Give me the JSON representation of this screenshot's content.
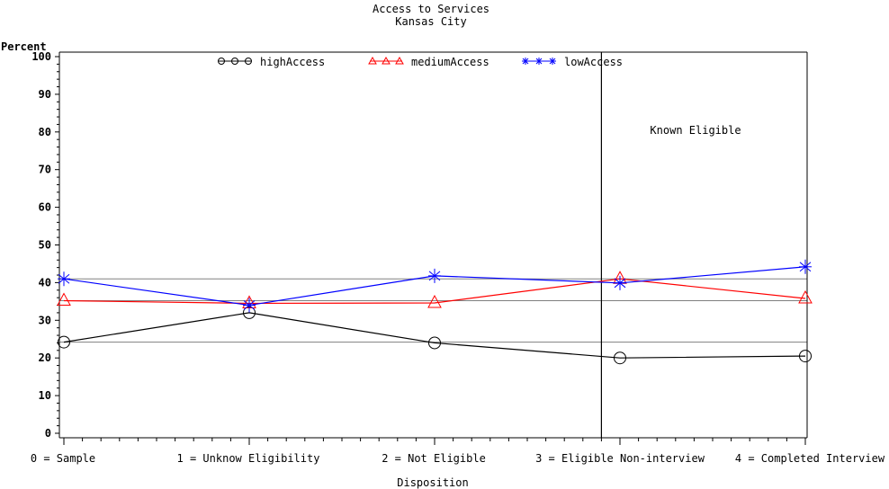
{
  "chart_data": {
    "type": "line",
    "title": "Access to Services",
    "subtitle": "Kansas City",
    "xlabel": "Disposition",
    "ylabel": "Percent",
    "x": [
      0,
      1,
      2,
      3,
      4
    ],
    "xlim": [
      0,
      4
    ],
    "ylim": [
      0,
      100
    ],
    "y_ticks": [
      0,
      10,
      20,
      30,
      40,
      50,
      60,
      70,
      80,
      90,
      100
    ],
    "x_tick_labels": [
      "0 = Sample",
      "1 = Unknow Eligibility",
      "2 = Not Eligible",
      "3 = Eligible Non-interview",
      "4 = Completed Interview"
    ],
    "series": [
      {
        "name": "highAccess",
        "marker": "circle",
        "color": "#000000",
        "values": [
          24.2,
          32.0,
          24.0,
          20.0,
          20.5
        ]
      },
      {
        "name": "mediumAccess",
        "marker": "triangle",
        "color": "#ff0000",
        "values": [
          35.2,
          34.5,
          34.6,
          41.0,
          35.8
        ]
      },
      {
        "name": "lowAccess",
        "marker": "star",
        "color": "#0000ff",
        "values": [
          41.0,
          34.0,
          41.8,
          39.9,
          44.2
        ]
      }
    ],
    "reference_lines": [
      41.0,
      35.2,
      24.2
    ],
    "reference_line_color": "#808080",
    "vertical_reference_x": 2.9,
    "annotation": "Known Eligible",
    "legend_position": "top-center",
    "grid": false
  }
}
